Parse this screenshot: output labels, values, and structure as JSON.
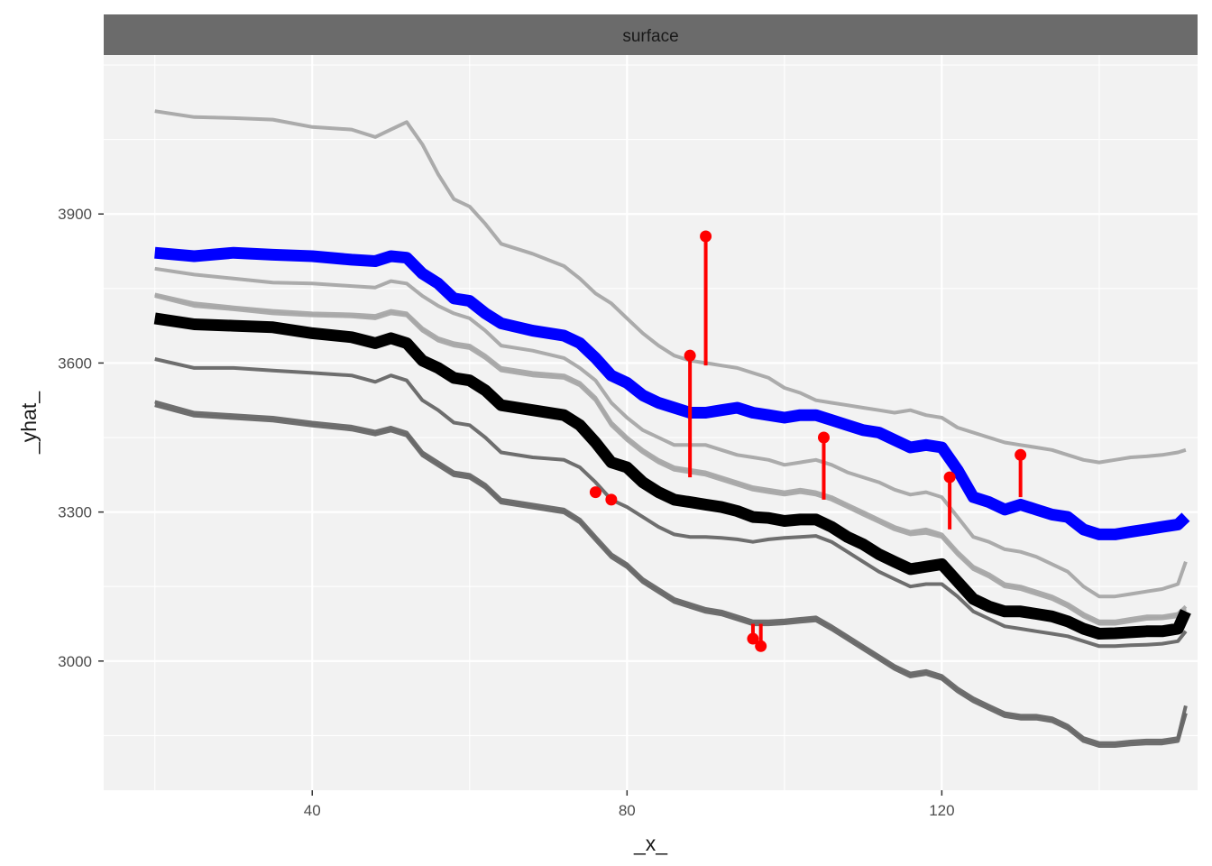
{
  "chart_data": {
    "type": "line",
    "facet_label": "surface",
    "xlabel": "_x_",
    "ylabel": "_yhat_",
    "xlim": [
      13.5,
      152.5
    ],
    "ylim": [
      2740,
      4220
    ],
    "x_ticks": [
      40,
      80,
      120
    ],
    "y_ticks": [
      3000,
      3300,
      3600,
      3900
    ],
    "grid": true,
    "colors": {
      "highlight_top": "#0000ff",
      "highlight_mean": "#000000",
      "residual": "#ff0000",
      "profile_light": "#a6a6a6",
      "profile_dark": "#666666",
      "panel_background": "#f2f2f2",
      "strip_background": "#6b6b6b",
      "grid": "#ffffff"
    },
    "x": [
      20,
      25,
      30,
      35,
      40,
      45,
      48,
      50,
      52,
      54,
      56,
      58,
      60,
      62,
      64,
      68,
      72,
      74,
      76,
      78,
      80,
      82,
      84,
      86,
      88,
      90,
      92,
      94,
      96,
      98,
      100,
      102,
      104,
      106,
      108,
      110,
      112,
      114,
      116,
      118,
      120,
      122,
      124,
      126,
      128,
      130,
      132,
      134,
      136,
      138,
      140,
      142,
      144,
      146,
      148,
      150,
      151
    ],
    "series": [
      {
        "role": "profile",
        "values": [
          4107,
          4095,
          4093,
          4090,
          4075,
          4070,
          4055,
          4070,
          4085,
          4040,
          3980,
          3930,
          3915,
          3880,
          3840,
          3820,
          3795,
          3770,
          3740,
          3720,
          3690,
          3660,
          3635,
          3615,
          3605,
          3600,
          3595,
          3590,
          3580,
          3570,
          3550,
          3540,
          3525,
          3520,
          3515,
          3510,
          3505,
          3500,
          3505,
          3495,
          3490,
          3470,
          3460,
          3450,
          3440,
          3435,
          3430,
          3425,
          3415,
          3405,
          3400,
          3405,
          3410,
          3412,
          3415,
          3420,
          3425
        ]
      },
      {
        "role": "highlight_top",
        "values": [
          3822,
          3815,
          3822,
          3818,
          3815,
          3808,
          3805,
          3815,
          3812,
          3780,
          3760,
          3730,
          3725,
          3700,
          3680,
          3665,
          3655,
          3640,
          3610,
          3575,
          3560,
          3535,
          3520,
          3510,
          3500,
          3500,
          3505,
          3510,
          3500,
          3495,
          3490,
          3495,
          3495,
          3485,
          3475,
          3465,
          3460,
          3445,
          3430,
          3435,
          3430,
          3385,
          3330,
          3320,
          3305,
          3315,
          3305,
          3295,
          3290,
          3265,
          3255,
          3255,
          3260,
          3265,
          3270,
          3275,
          3290
        ]
      },
      {
        "role": "profile",
        "values": [
          3790,
          3778,
          3770,
          3762,
          3760,
          3755,
          3752,
          3765,
          3760,
          3735,
          3715,
          3700,
          3690,
          3665,
          3635,
          3625,
          3610,
          3590,
          3565,
          3520,
          3490,
          3465,
          3450,
          3435,
          3435,
          3435,
          3425,
          3415,
          3410,
          3405,
          3395,
          3400,
          3405,
          3395,
          3380,
          3370,
          3360,
          3345,
          3335,
          3340,
          3330,
          3290,
          3250,
          3240,
          3225,
          3220,
          3210,
          3195,
          3180,
          3150,
          3130,
          3130,
          3135,
          3140,
          3145,
          3155,
          3200
        ]
      },
      {
        "role": "profile",
        "values": [
          3738,
          3720,
          3712,
          3705,
          3700,
          3698,
          3695,
          3705,
          3700,
          3670,
          3650,
          3640,
          3635,
          3615,
          3590,
          3580,
          3575,
          3560,
          3530,
          3480,
          3450,
          3425,
          3405,
          3390,
          3385,
          3380,
          3370,
          3360,
          3350,
          3345,
          3340,
          3345,
          3340,
          3330,
          3315,
          3300,
          3285,
          3270,
          3260,
          3265,
          3255,
          3220,
          3190,
          3175,
          3155,
          3150,
          3140,
          3130,
          3115,
          3095,
          3080,
          3080,
          3085,
          3090,
          3090,
          3095,
          3110
        ]
      },
      {
        "role": "profile",
        "values": [
          3735,
          3715,
          3708,
          3700,
          3696,
          3694,
          3690,
          3700,
          3696,
          3665,
          3645,
          3635,
          3630,
          3610,
          3585,
          3575,
          3570,
          3555,
          3525,
          3475,
          3445,
          3420,
          3400,
          3385,
          3380,
          3375,
          3365,
          3355,
          3345,
          3340,
          3335,
          3340,
          3335,
          3325,
          3310,
          3295,
          3280,
          3265,
          3255,
          3258,
          3250,
          3215,
          3185,
          3170,
          3150,
          3145,
          3135,
          3125,
          3110,
          3090,
          3075,
          3075,
          3080,
          3085,
          3086,
          3090,
          3105
        ]
      },
      {
        "role": "highlight_mean",
        "values": [
          3690,
          3678,
          3675,
          3672,
          3660,
          3652,
          3640,
          3650,
          3640,
          3605,
          3590,
          3570,
          3565,
          3545,
          3515,
          3505,
          3495,
          3475,
          3440,
          3400,
          3390,
          3360,
          3340,
          3325,
          3320,
          3315,
          3310,
          3302,
          3290,
          3288,
          3282,
          3285,
          3285,
          3270,
          3250,
          3235,
          3215,
          3200,
          3185,
          3190,
          3195,
          3160,
          3125,
          3110,
          3100,
          3100,
          3095,
          3090,
          3080,
          3065,
          3055,
          3056,
          3058,
          3060,
          3060,
          3065,
          3100
        ]
      },
      {
        "role": "profile",
        "values": [
          3608,
          3590,
          3590,
          3585,
          3580,
          3575,
          3562,
          3575,
          3565,
          3525,
          3505,
          3480,
          3475,
          3450,
          3420,
          3410,
          3405,
          3390,
          3360,
          3325,
          3310,
          3290,
          3270,
          3255,
          3250,
          3250,
          3248,
          3245,
          3240,
          3245,
          3248,
          3250,
          3252,
          3240,
          3220,
          3200,
          3180,
          3165,
          3150,
          3155,
          3155,
          3130,
          3100,
          3085,
          3070,
          3065,
          3060,
          3055,
          3050,
          3040,
          3030,
          3030,
          3032,
          3033,
          3035,
          3040,
          3060
        ]
      },
      {
        "role": "profile",
        "values": [
          3522,
          3500,
          3495,
          3490,
          3480,
          3472,
          3462,
          3470,
          3460,
          3420,
          3400,
          3380,
          3375,
          3355,
          3325,
          3315,
          3305,
          3285,
          3250,
          3215,
          3195,
          3165,
          3145,
          3125,
          3115,
          3105,
          3100,
          3090,
          3080,
          3080,
          3082,
          3085,
          3088,
          3070,
          3050,
          3030,
          3010,
          2990,
          2975,
          2980,
          2970,
          2945,
          2925,
          2910,
          2895,
          2890,
          2890,
          2885,
          2870,
          2845,
          2835,
          2835,
          2838,
          2840,
          2840,
          2845,
          2910
        ]
      },
      {
        "role": "profile",
        "values": [
          3515,
          3494,
          3489,
          3484,
          3474,
          3466,
          3456,
          3464,
          3454,
          3414,
          3394,
          3374,
          3369,
          3349,
          3319,
          3309,
          3299,
          3279,
          3244,
          3209,
          3189,
          3159,
          3139,
          3119,
          3109,
          3099,
          3094,
          3084,
          3074,
          3074,
          3076,
          3079,
          3082,
          3064,
          3044,
          3024,
          3004,
          2984,
          2969,
          2974,
          2964,
          2939,
          2919,
          2904,
          2889,
          2884,
          2884,
          2879,
          2864,
          2839,
          2829,
          2829,
          2832,
          2834,
          2834,
          2839,
          2895
        ]
      }
    ],
    "residual_points": [
      {
        "x": 76,
        "y": 3340,
        "yhat": 3340
      },
      {
        "x": 78,
        "y": 3325,
        "yhat": 3325
      },
      {
        "x": 88,
        "y": 3615,
        "yhat": 3370
      },
      {
        "x": 90,
        "y": 3855,
        "yhat": 3595
      },
      {
        "x": 96,
        "y": 3045,
        "yhat": 3075
      },
      {
        "x": 97,
        "y": 3030,
        "yhat": 3075
      },
      {
        "x": 105,
        "y": 3450,
        "yhat": 3325
      },
      {
        "x": 121,
        "y": 3370,
        "yhat": 3265
      },
      {
        "x": 130,
        "y": 3415,
        "yhat": 3330
      }
    ]
  }
}
